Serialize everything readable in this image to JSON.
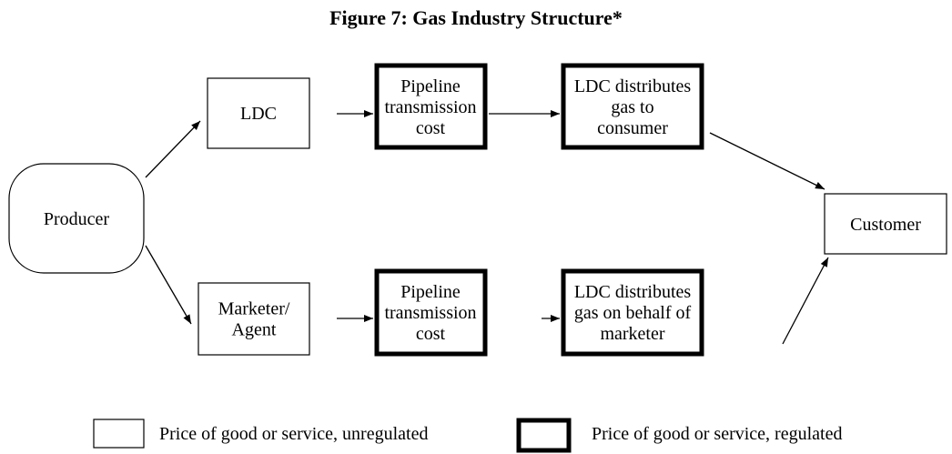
{
  "title": "Figure 7: Gas Industry Structure*",
  "nodes": [
    {
      "lines": [
        "Producer"
      ]
    },
    {
      "lines": [
        "LDC"
      ]
    },
    {
      "lines": [
        "Pipeline",
        "transmission",
        "cost"
      ]
    },
    {
      "lines": [
        "LDC distributes",
        "gas to",
        "consumer"
      ]
    },
    {
      "lines": [
        "Customer"
      ]
    },
    {
      "lines": [
        "Marketer/",
        "Agent"
      ]
    },
    {
      "lines": [
        "Pipeline",
        "transmission",
        "cost"
      ]
    },
    {
      "lines": [
        "LDC distributes",
        "gas on behalf of",
        "marketer"
      ]
    }
  ],
  "legend": [
    {
      "label": "Price of good or service, unregulated"
    },
    {
      "label": "Price of good or service, regulated"
    }
  ]
}
